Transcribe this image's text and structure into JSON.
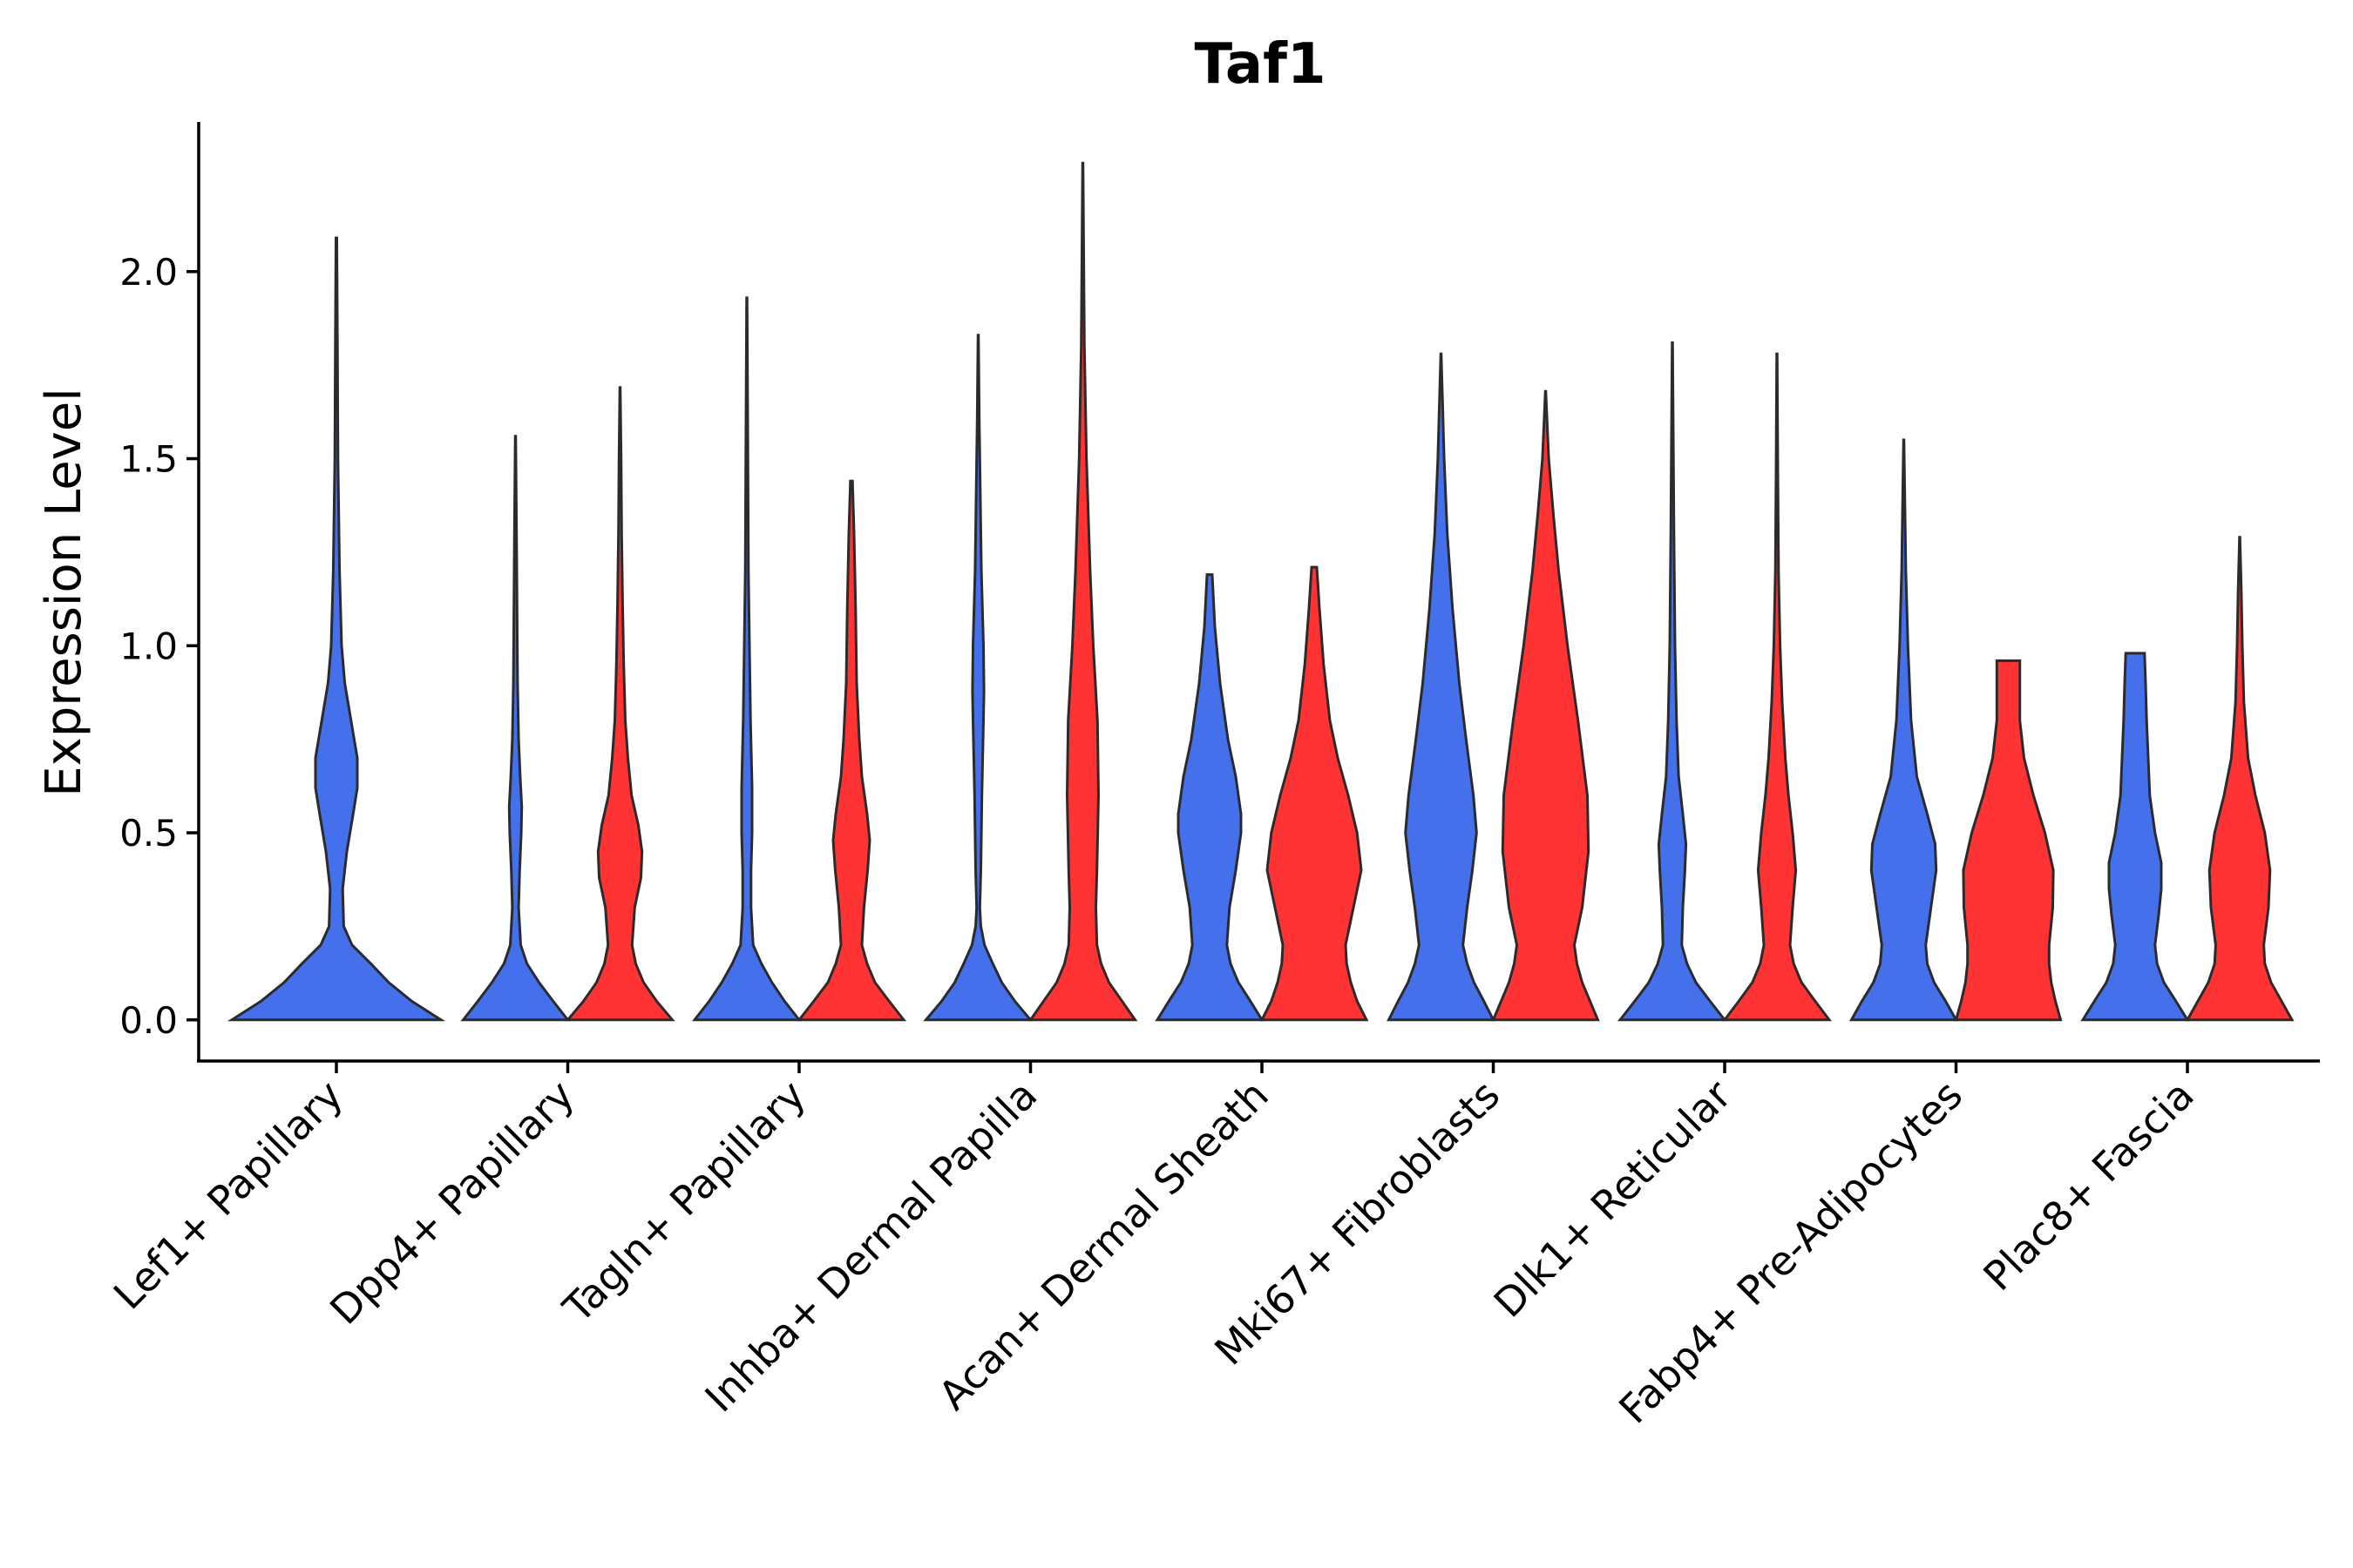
{
  "chart_data": {
    "type": "violin",
    "title": "Taf1",
    "xlabel": "",
    "ylabel": "Expression Level",
    "ylim": [
      -0.11,
      2.4
    ],
    "yticks": [
      0.0,
      0.5,
      1.0,
      1.5,
      2.0
    ],
    "ytick_labels": [
      "0.0",
      "0.5",
      "1.0",
      "1.5",
      "2.0"
    ],
    "grid": false,
    "legend": "none",
    "series_colors": [
      "#4570eb",
      "#ff3333"
    ],
    "categories": [
      "Lef1+ Papillary",
      "Dpp4+ Papillary",
      "Tagln+ Papillary",
      "Inhba+ Dermal Papilla",
      "Acan+ Dermal Sheath",
      "Mki67+ Fibroblasts",
      "Dlk1+ Reticular",
      "Fabp4+ Pre-Adipocytes",
      "Plac8+ Fascia"
    ],
    "violins": [
      {
        "category": "Lef1+ Papillary",
        "group": 1,
        "max": 2.09,
        "profile": [
          [
            0,
            1.0
          ],
          [
            0.05,
            0.72
          ],
          [
            0.1,
            0.5
          ],
          [
            0.15,
            0.33
          ],
          [
            0.2,
            0.15
          ],
          [
            0.25,
            0.07
          ],
          [
            0.35,
            0.06
          ],
          [
            0.45,
            0.1
          ],
          [
            0.55,
            0.16
          ],
          [
            0.62,
            0.2
          ],
          [
            0.7,
            0.2
          ],
          [
            0.8,
            0.14
          ],
          [
            0.9,
            0.08
          ],
          [
            1.0,
            0.05
          ],
          [
            1.2,
            0.03
          ],
          [
            1.5,
            0.015
          ],
          [
            1.8,
            0.01
          ],
          [
            2.09,
            0.004
          ]
        ]
      },
      {
        "category": "Dpp4+ Papillary",
        "group": 1,
        "max": 1.56,
        "profile": [
          [
            0,
            1.0
          ],
          [
            0.05,
            0.72
          ],
          [
            0.1,
            0.45
          ],
          [
            0.15,
            0.22
          ],
          [
            0.2,
            0.1
          ],
          [
            0.3,
            0.06
          ],
          [
            0.4,
            0.08
          ],
          [
            0.5,
            0.11
          ],
          [
            0.57,
            0.12
          ],
          [
            0.65,
            0.09
          ],
          [
            0.75,
            0.06
          ],
          [
            0.9,
            0.04
          ],
          [
            1.1,
            0.03
          ],
          [
            1.3,
            0.02
          ],
          [
            1.56,
            0.004
          ]
        ]
      },
      {
        "category": "Dpp4+ Papillary",
        "group": 2,
        "max": 1.69,
        "profile": [
          [
            0,
            1.0
          ],
          [
            0.05,
            0.7
          ],
          [
            0.1,
            0.45
          ],
          [
            0.15,
            0.3
          ],
          [
            0.2,
            0.23
          ],
          [
            0.3,
            0.28
          ],
          [
            0.38,
            0.4
          ],
          [
            0.45,
            0.42
          ],
          [
            0.52,
            0.35
          ],
          [
            0.6,
            0.22
          ],
          [
            0.7,
            0.15
          ],
          [
            0.8,
            0.1
          ],
          [
            0.95,
            0.07
          ],
          [
            1.1,
            0.05
          ],
          [
            1.3,
            0.03
          ],
          [
            1.5,
            0.02
          ],
          [
            1.69,
            0.004
          ]
        ]
      },
      {
        "category": "Tagln+ Papillary",
        "group": 1,
        "max": 1.93,
        "profile": [
          [
            0,
            1.0
          ],
          [
            0.05,
            0.72
          ],
          [
            0.1,
            0.48
          ],
          [
            0.15,
            0.28
          ],
          [
            0.2,
            0.12
          ],
          [
            0.3,
            0.08
          ],
          [
            0.4,
            0.08
          ],
          [
            0.5,
            0.1
          ],
          [
            0.62,
            0.1
          ],
          [
            0.8,
            0.07
          ],
          [
            1.0,
            0.05
          ],
          [
            1.2,
            0.03
          ],
          [
            1.5,
            0.02
          ],
          [
            1.93,
            0.004
          ]
        ]
      },
      {
        "category": "Tagln+ Papillary",
        "group": 2,
        "max": 1.44,
        "profile": [
          [
            0,
            1.0
          ],
          [
            0.05,
            0.72
          ],
          [
            0.1,
            0.45
          ],
          [
            0.15,
            0.3
          ],
          [
            0.2,
            0.2
          ],
          [
            0.3,
            0.24
          ],
          [
            0.4,
            0.31
          ],
          [
            0.48,
            0.35
          ],
          [
            0.55,
            0.3
          ],
          [
            0.65,
            0.2
          ],
          [
            0.75,
            0.15
          ],
          [
            0.9,
            0.1
          ],
          [
            1.1,
            0.08
          ],
          [
            1.3,
            0.05
          ],
          [
            1.44,
            0.02
          ]
        ]
      },
      {
        "category": "Inhba+ Dermal Papilla",
        "group": 1,
        "max": 1.83,
        "profile": [
          [
            0,
            1.0
          ],
          [
            0.05,
            0.7
          ],
          [
            0.1,
            0.45
          ],
          [
            0.15,
            0.28
          ],
          [
            0.2,
            0.12
          ],
          [
            0.25,
            0.05
          ],
          [
            0.3,
            0.03
          ],
          [
            0.4,
            0.05
          ],
          [
            0.6,
            0.07
          ],
          [
            0.8,
            0.1
          ],
          [
            0.88,
            0.11
          ],
          [
            1.0,
            0.1
          ],
          [
            1.2,
            0.06
          ],
          [
            1.4,
            0.04
          ],
          [
            1.6,
            0.02
          ],
          [
            1.83,
            0.004
          ]
        ]
      },
      {
        "category": "Inhba+ Dermal Papilla",
        "group": 2,
        "max": 2.29,
        "profile": [
          [
            0,
            1.0
          ],
          [
            0.05,
            0.75
          ],
          [
            0.1,
            0.5
          ],
          [
            0.15,
            0.35
          ],
          [
            0.2,
            0.27
          ],
          [
            0.3,
            0.25
          ],
          [
            0.4,
            0.27
          ],
          [
            0.6,
            0.3
          ],
          [
            0.8,
            0.28
          ],
          [
            1.0,
            0.2
          ],
          [
            1.2,
            0.14
          ],
          [
            1.5,
            0.07
          ],
          [
            1.8,
            0.03
          ],
          [
            2.29,
            0.004
          ]
        ]
      },
      {
        "category": "Acan+ Dermal Sheath",
        "group": 1,
        "max": 1.19,
        "profile": [
          [
            0,
            1.0
          ],
          [
            0.05,
            0.78
          ],
          [
            0.1,
            0.55
          ],
          [
            0.15,
            0.4
          ],
          [
            0.2,
            0.33
          ],
          [
            0.3,
            0.38
          ],
          [
            0.4,
            0.5
          ],
          [
            0.5,
            0.6
          ],
          [
            0.55,
            0.6
          ],
          [
            0.65,
            0.5
          ],
          [
            0.75,
            0.35
          ],
          [
            0.9,
            0.2
          ],
          [
            1.05,
            0.1
          ],
          [
            1.19,
            0.05
          ]
        ]
      },
      {
        "category": "Acan+ Dermal Sheath",
        "group": 2,
        "max": 1.21,
        "profile": [
          [
            0,
            1.0
          ],
          [
            0.05,
            0.82
          ],
          [
            0.1,
            0.7
          ],
          [
            0.15,
            0.62
          ],
          [
            0.2,
            0.6
          ],
          [
            0.3,
            0.75
          ],
          [
            0.4,
            0.9
          ],
          [
            0.5,
            0.82
          ],
          [
            0.6,
            0.65
          ],
          [
            0.7,
            0.45
          ],
          [
            0.8,
            0.3
          ],
          [
            0.95,
            0.18
          ],
          [
            1.1,
            0.1
          ],
          [
            1.21,
            0.05
          ]
        ]
      },
      {
        "category": "Mki67+ Fibroblasts",
        "group": 1,
        "max": 1.78,
        "profile": [
          [
            0,
            1.0
          ],
          [
            0.05,
            0.82
          ],
          [
            0.1,
            0.63
          ],
          [
            0.15,
            0.5
          ],
          [
            0.2,
            0.42
          ],
          [
            0.3,
            0.5
          ],
          [
            0.4,
            0.6
          ],
          [
            0.5,
            0.68
          ],
          [
            0.6,
            0.62
          ],
          [
            0.75,
            0.48
          ],
          [
            0.9,
            0.35
          ],
          [
            1.1,
            0.22
          ],
          [
            1.3,
            0.12
          ],
          [
            1.5,
            0.06
          ],
          [
            1.78,
            0.004
          ]
        ]
      },
      {
        "category": "Mki67+ Fibroblasts",
        "group": 2,
        "max": 1.68,
        "profile": [
          [
            0,
            1.0
          ],
          [
            0.05,
            0.85
          ],
          [
            0.1,
            0.7
          ],
          [
            0.15,
            0.6
          ],
          [
            0.2,
            0.55
          ],
          [
            0.3,
            0.7
          ],
          [
            0.45,
            0.82
          ],
          [
            0.6,
            0.8
          ],
          [
            0.8,
            0.62
          ],
          [
            1.0,
            0.42
          ],
          [
            1.2,
            0.25
          ],
          [
            1.35,
            0.15
          ],
          [
            1.5,
            0.06
          ],
          [
            1.68,
            0.004
          ]
        ]
      },
      {
        "category": "Dlk1+ Reticular",
        "group": 1,
        "max": 1.81,
        "profile": [
          [
            0,
            1.0
          ],
          [
            0.05,
            0.72
          ],
          [
            0.1,
            0.45
          ],
          [
            0.15,
            0.28
          ],
          [
            0.2,
            0.18
          ],
          [
            0.3,
            0.2
          ],
          [
            0.4,
            0.24
          ],
          [
            0.47,
            0.26
          ],
          [
            0.55,
            0.2
          ],
          [
            0.65,
            0.12
          ],
          [
            0.8,
            0.08
          ],
          [
            1.0,
            0.05
          ],
          [
            1.3,
            0.03
          ],
          [
            1.6,
            0.015
          ],
          [
            1.81,
            0.004
          ]
        ]
      },
      {
        "category": "Dlk1+ Reticular",
        "group": 2,
        "max": 1.78,
        "profile": [
          [
            0,
            1.0
          ],
          [
            0.05,
            0.73
          ],
          [
            0.1,
            0.47
          ],
          [
            0.15,
            0.32
          ],
          [
            0.2,
            0.25
          ],
          [
            0.3,
            0.3
          ],
          [
            0.4,
            0.36
          ],
          [
            0.5,
            0.3
          ],
          [
            0.6,
            0.22
          ],
          [
            0.7,
            0.16
          ],
          [
            0.85,
            0.1
          ],
          [
            1.0,
            0.06
          ],
          [
            1.2,
            0.03
          ],
          [
            1.5,
            0.015
          ],
          [
            1.78,
            0.004
          ]
        ]
      },
      {
        "category": "Fabp4+ Pre-Adipocytes",
        "group": 1,
        "max": 1.55,
        "profile": [
          [
            0,
            1.0
          ],
          [
            0.05,
            0.8
          ],
          [
            0.1,
            0.58
          ],
          [
            0.15,
            0.45
          ],
          [
            0.2,
            0.42
          ],
          [
            0.3,
            0.52
          ],
          [
            0.4,
            0.62
          ],
          [
            0.47,
            0.6
          ],
          [
            0.55,
            0.45
          ],
          [
            0.65,
            0.25
          ],
          [
            0.8,
            0.14
          ],
          [
            1.0,
            0.08
          ],
          [
            1.2,
            0.04
          ],
          [
            1.55,
            0.004
          ]
        ]
      },
      {
        "category": "Fabp4+ Pre-Adipocytes",
        "group": 2,
        "max": 0.96,
        "profile": [
          [
            0,
            1.0
          ],
          [
            0.05,
            0.9
          ],
          [
            0.1,
            0.82
          ],
          [
            0.15,
            0.78
          ],
          [
            0.2,
            0.78
          ],
          [
            0.3,
            0.85
          ],
          [
            0.4,
            0.86
          ],
          [
            0.5,
            0.7
          ],
          [
            0.6,
            0.48
          ],
          [
            0.7,
            0.3
          ],
          [
            0.8,
            0.22
          ],
          [
            0.9,
            0.22
          ],
          [
            0.96,
            0.22
          ]
        ]
      },
      {
        "category": "Plac8+ Fascia",
        "group": 1,
        "max": 0.98,
        "profile": [
          [
            0,
            1.0
          ],
          [
            0.05,
            0.78
          ],
          [
            0.1,
            0.55
          ],
          [
            0.15,
            0.42
          ],
          [
            0.2,
            0.38
          ],
          [
            0.28,
            0.45
          ],
          [
            0.35,
            0.5
          ],
          [
            0.42,
            0.5
          ],
          [
            0.5,
            0.38
          ],
          [
            0.6,
            0.28
          ],
          [
            0.7,
            0.25
          ],
          [
            0.8,
            0.22
          ],
          [
            0.9,
            0.2
          ],
          [
            0.98,
            0.18
          ]
        ]
      },
      {
        "category": "Plac8+ Fascia",
        "group": 2,
        "max": 1.29,
        "profile": [
          [
            0,
            1.0
          ],
          [
            0.05,
            0.8
          ],
          [
            0.1,
            0.6
          ],
          [
            0.15,
            0.48
          ],
          [
            0.2,
            0.46
          ],
          [
            0.3,
            0.55
          ],
          [
            0.4,
            0.58
          ],
          [
            0.5,
            0.48
          ],
          [
            0.6,
            0.3
          ],
          [
            0.7,
            0.16
          ],
          [
            0.85,
            0.08
          ],
          [
            1.0,
            0.05
          ],
          [
            1.15,
            0.03
          ],
          [
            1.29,
            0.004
          ]
        ]
      }
    ]
  }
}
